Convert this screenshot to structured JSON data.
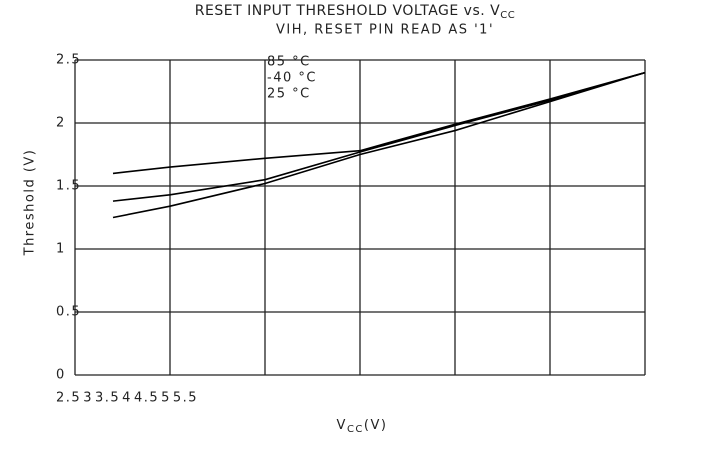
{
  "chart_data": {
    "type": "line",
    "title": "RESET INPUT THRESHOLD VOLTAGE vs. V",
    "title_sub": "CC",
    "subtitle": "VIH, RESET PIN READ AS '1'",
    "x_label": "V",
    "x_label_sub": "CC",
    "x_label_unit": "(V)",
    "y_label": "Threshold (V)",
    "x": [
      2.7,
      3,
      3.5,
      4,
      4.5,
      5,
      5.5
    ],
    "series": [
      {
        "name": "85 °C",
        "color": "#000000",
        "values": [
          1.25,
          1.34,
          1.52,
          1.75,
          1.94,
          2.17,
          2.4
        ]
      },
      {
        "name": "-40 °C",
        "color": "#000000",
        "values": [
          1.6,
          1.65,
          1.72,
          1.78,
          1.99,
          2.19,
          2.4
        ]
      },
      {
        "name": "25 °C",
        "color": "#000000",
        "values": [
          1.38,
          1.43,
          1.55,
          1.77,
          1.98,
          2.18,
          2.4
        ]
      }
    ],
    "xlim": [
      2.5,
      5.5
    ],
    "xticks": [
      2.5,
      3,
      3.5,
      4,
      4.5,
      5,
      5.5
    ],
    "ylim": [
      0,
      2.5
    ],
    "yticks": [
      0,
      0.5,
      1,
      1.5,
      2,
      2.5
    ],
    "grid": true
  }
}
